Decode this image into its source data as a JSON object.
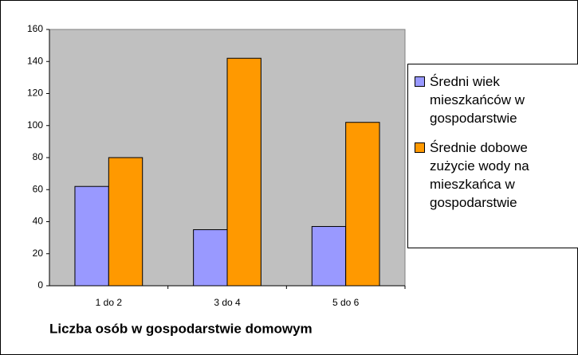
{
  "chart_data": {
    "type": "bar",
    "x_label": "Liczba osób w gospodarstwie domowym",
    "categories": [
      "1 do 2",
      "3 do 4",
      "5 do 6"
    ],
    "series": [
      {
        "name": "Średni wiek mieszkańców w gospodarstwie",
        "color": "#9999ff",
        "values": [
          62,
          35,
          37
        ]
      },
      {
        "name": "Średnie dobowe zużycie wody na mieszkańca w gospodarstwie",
        "color": "#ff9900",
        "values": [
          80,
          142,
          102
        ]
      }
    ],
    "ylim": [
      0,
      160
    ],
    "yticks": [
      0,
      20,
      40,
      60,
      80,
      100,
      120,
      140,
      160
    ],
    "legend": "right"
  }
}
